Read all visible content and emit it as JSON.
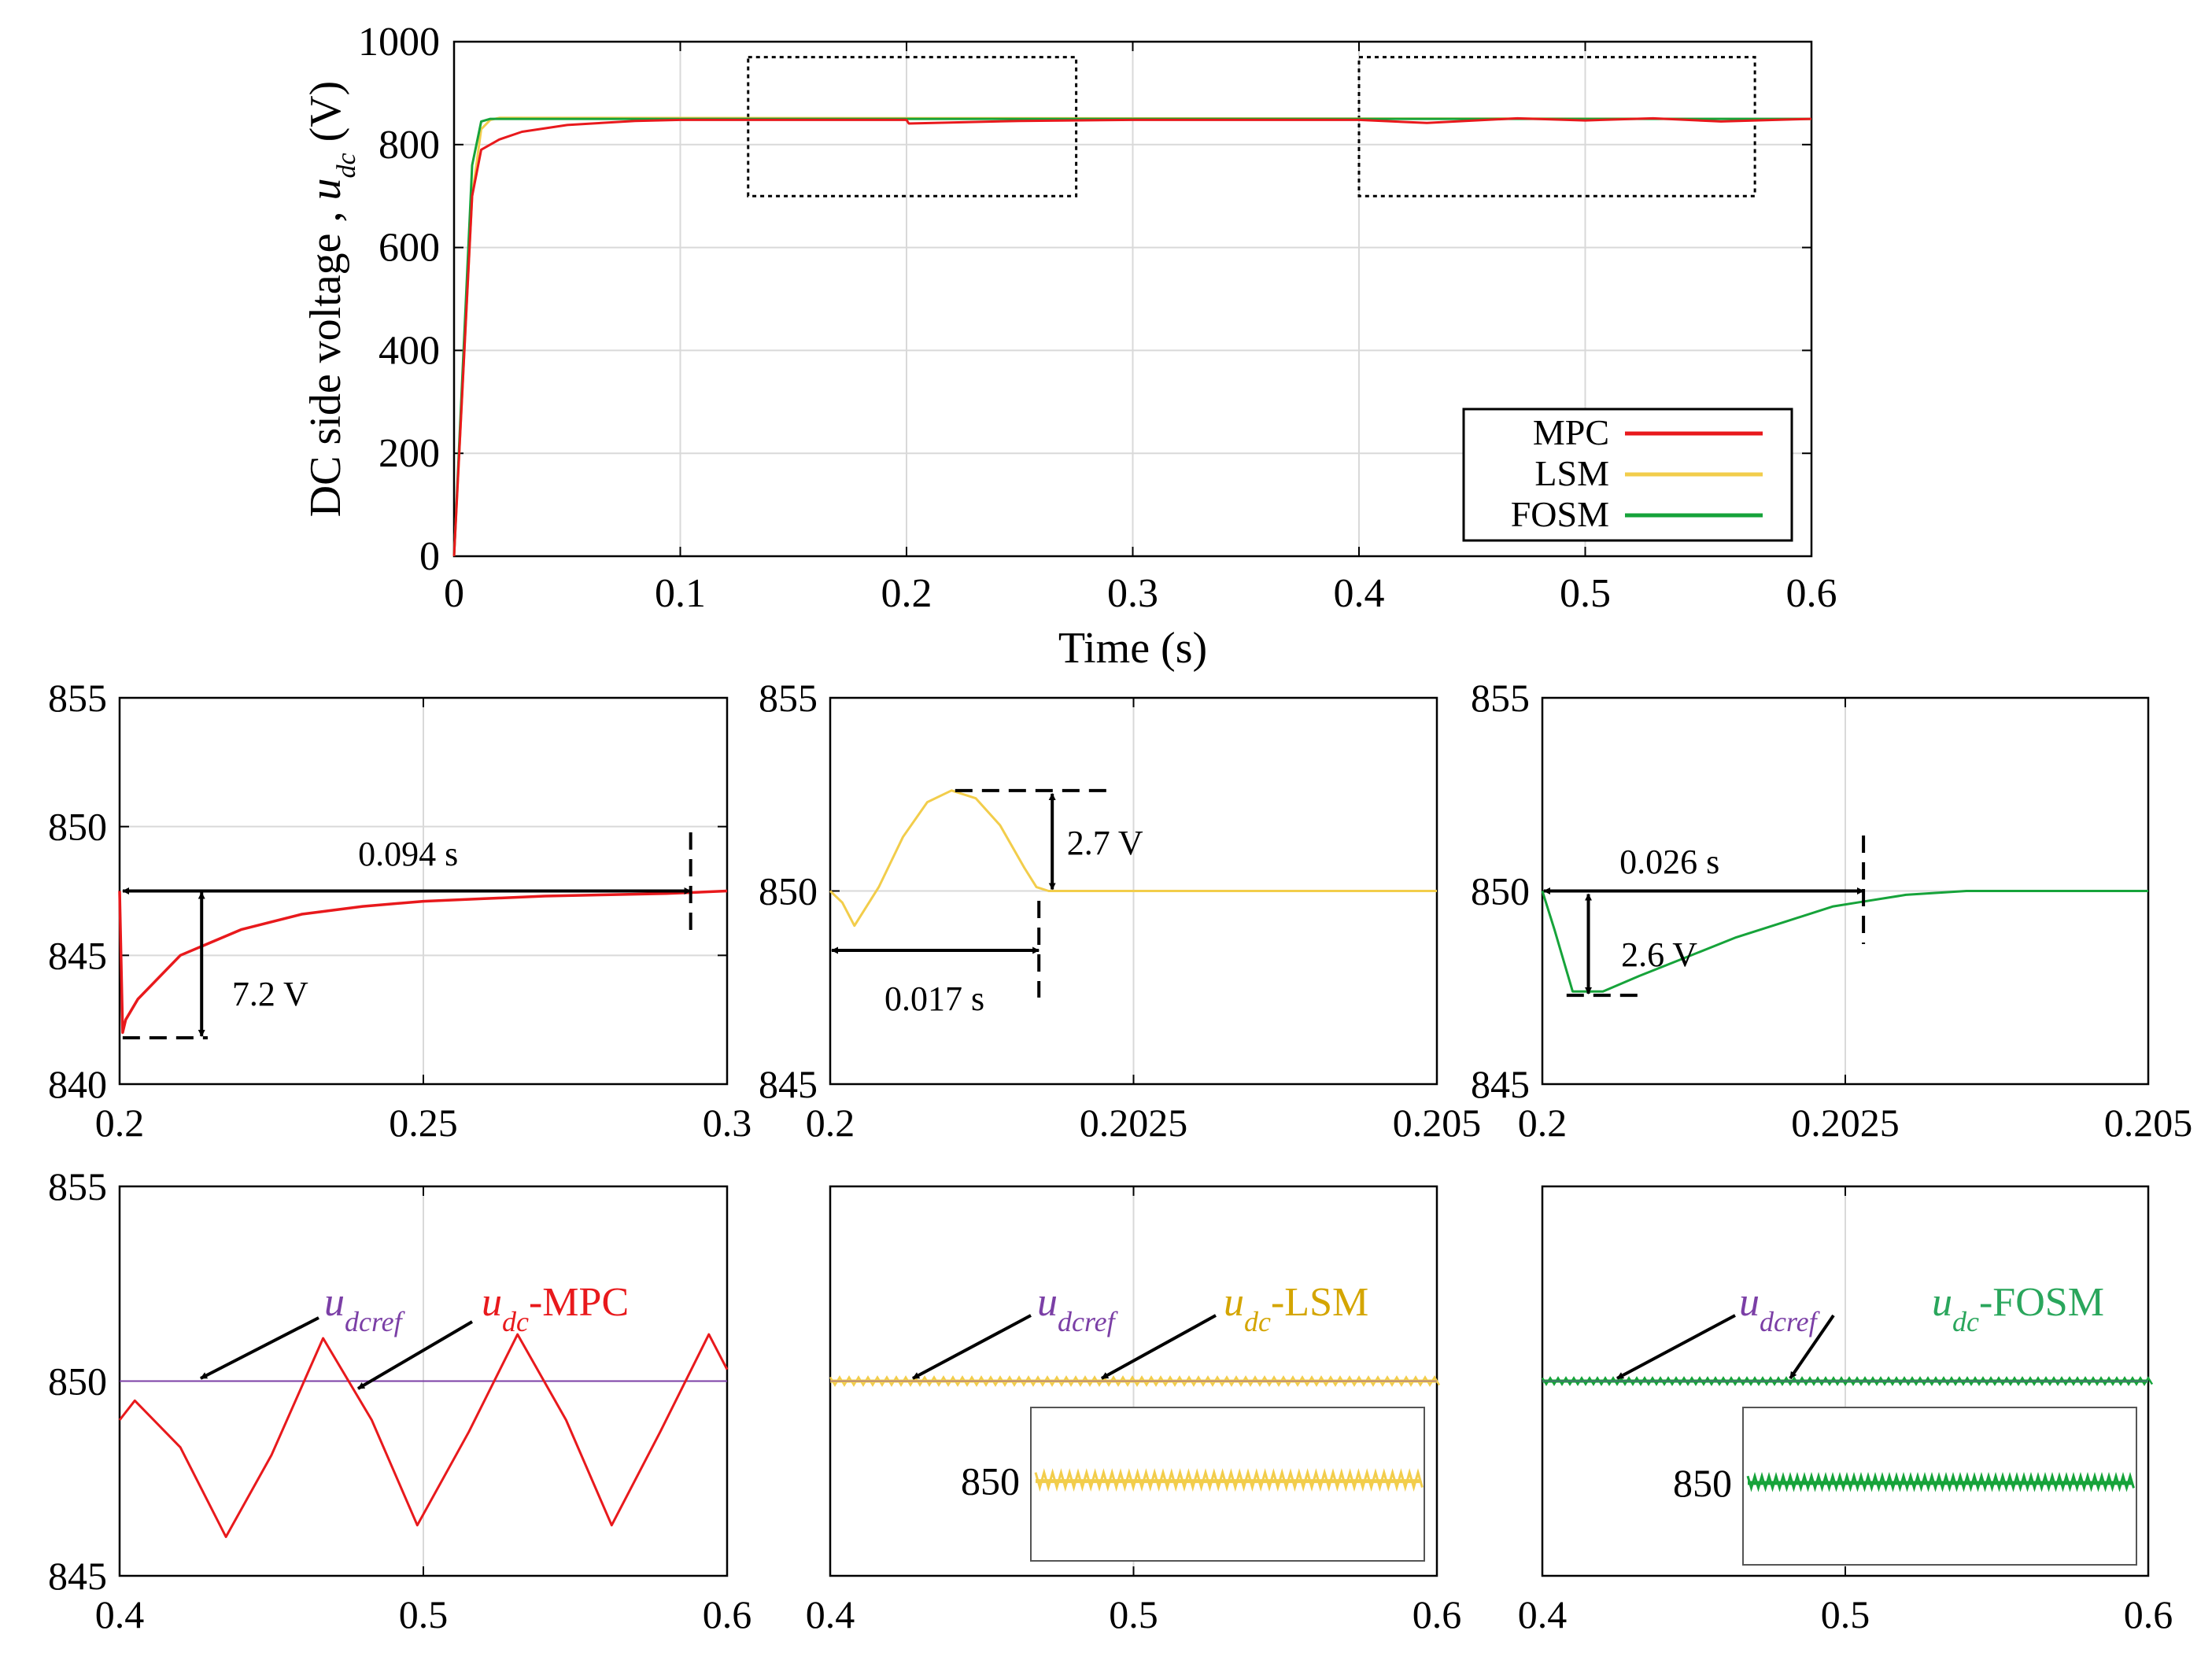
{
  "colors": {
    "mpc": "#e8191c",
    "lsm": "#f2cd4b",
    "fosm": "#16a33a",
    "ref": "#7b3fa6",
    "lsm_label": "#d4a500",
    "fosm_label": "#2aa65c",
    "grid": "#d9d9d9"
  },
  "chart_data": [
    {
      "id": "main",
      "type": "line",
      "ylabel_main": "DC side voltage , ",
      "ylabel_sym": "u",
      "ylabel_sub": "dc",
      "ylabel_unit": " (V)",
      "xlabel": "Time (s)",
      "xlim": [
        0,
        0.6
      ],
      "ylim": [
        0,
        1000
      ],
      "xticks": [
        "0",
        "0.1",
        "0.2",
        "0.3",
        "0.4",
        "0.5",
        "0.6"
      ],
      "yticks": [
        "0",
        "200",
        "400",
        "600",
        "800",
        "1000"
      ],
      "grid": true,
      "legend_position": "bottom-right",
      "legend": [
        "MPC",
        "LSM",
        "FOSM"
      ],
      "zoom_boxes": [
        {
          "x": [
            0.13,
            0.275
          ],
          "y": [
            700,
            970
          ]
        },
        {
          "x": [
            0.4,
            0.575
          ],
          "y": [
            700,
            970
          ]
        }
      ],
      "series": [
        {
          "name": "MPC",
          "x": [
            0,
            0.004,
            0.008,
            0.012,
            0.02,
            0.03,
            0.05,
            0.08,
            0.1,
            0.2,
            0.201,
            0.25,
            0.3,
            0.4,
            0.43,
            0.47,
            0.5,
            0.53,
            0.56,
            0.6
          ],
          "y": [
            0,
            350,
            700,
            790,
            810,
            825,
            838,
            846,
            848,
            848,
            841,
            846,
            848,
            848,
            842,
            851,
            847,
            851,
            845,
            850
          ]
        },
        {
          "name": "LSM",
          "x": [
            0,
            0.004,
            0.008,
            0.012,
            0.016,
            0.02,
            0.6
          ],
          "y": [
            0,
            350,
            700,
            830,
            848,
            852,
            850
          ]
        },
        {
          "name": "FOSM",
          "x": [
            0,
            0.004,
            0.008,
            0.012,
            0.016,
            0.6
          ],
          "y": [
            0,
            380,
            760,
            845,
            850,
            850
          ]
        }
      ]
    },
    {
      "id": "zoom-mpc-step",
      "type": "line",
      "xlim": [
        0.2,
        0.3
      ],
      "ylim": [
        840,
        855
      ],
      "xticks": [
        "0.2",
        "0.25",
        "0.3"
      ],
      "yticks": [
        "840",
        "845",
        "850",
        "855"
      ],
      "series": [
        {
          "name": "MPC",
          "x": [
            0.2,
            0.2005,
            0.201,
            0.203,
            0.21,
            0.22,
            0.23,
            0.24,
            0.25,
            0.26,
            0.27,
            0.28,
            0.29,
            0.3
          ],
          "y": [
            847.5,
            842,
            842.5,
            843.3,
            845,
            846,
            846.6,
            846.9,
            847.1,
            847.2,
            847.3,
            847.35,
            847.4,
            847.5
          ]
        }
      ],
      "annotations": [
        "0.094 s",
        "7.2 V"
      ]
    },
    {
      "id": "zoom-lsm-step",
      "type": "line",
      "xlim": [
        0.2,
        0.205
      ],
      "ylim": [
        845,
        855
      ],
      "xticks": [
        "0.2",
        "0.2025",
        "0.205"
      ],
      "yticks": [
        "845",
        "850",
        "855"
      ],
      "series": [
        {
          "name": "LSM",
          "x": [
            0.2,
            0.2001,
            0.2002,
            0.2004,
            0.2006,
            0.2008,
            0.201,
            0.2012,
            0.2014,
            0.2016,
            0.2017,
            0.2018,
            0.2022,
            0.205
          ],
          "y": [
            850,
            849.7,
            849.1,
            850.1,
            851.4,
            852.3,
            852.6,
            852.4,
            851.7,
            850.6,
            850.1,
            850,
            850,
            850
          ]
        }
      ],
      "annotations": [
        "2.7 V",
        "0.017 s"
      ]
    },
    {
      "id": "zoom-fosm-step",
      "type": "line",
      "xlim": [
        0.2,
        0.205
      ],
      "ylim": [
        845,
        855
      ],
      "xticks": [
        "0.2",
        "0.2025",
        "0.205"
      ],
      "yticks": [
        "845",
        "850",
        "855"
      ],
      "series": [
        {
          "name": "FOSM",
          "x": [
            0.2,
            0.2001,
            0.20025,
            0.2005,
            0.2008,
            0.2012,
            0.2016,
            0.202,
            0.2024,
            0.2026,
            0.203,
            0.2035,
            0.204,
            0.205
          ],
          "y": [
            850,
            849,
            847.4,
            847.4,
            847.8,
            848.3,
            848.8,
            849.2,
            849.6,
            849.7,
            849.9,
            850,
            850,
            850
          ]
        }
      ],
      "annotations": [
        "0.026 s",
        "2.6 V"
      ]
    },
    {
      "id": "ss-mpc",
      "type": "line",
      "xlim": [
        0.4,
        0.6
      ],
      "ylim": [
        845,
        855
      ],
      "xticks": [
        "0.4",
        "0.5",
        "0.6"
      ],
      "yticks": [
        "845",
        "850",
        "855"
      ],
      "series": [
        {
          "name": "udcref",
          "x": [
            0.4,
            0.6
          ],
          "y": [
            850,
            850
          ]
        },
        {
          "name": "MPC",
          "x": [
            0.4,
            0.405,
            0.42,
            0.435,
            0.45,
            0.467,
            0.483,
            0.498,
            0.515,
            0.531,
            0.547,
            0.562,
            0.578,
            0.594,
            0.6
          ],
          "y": [
            849,
            849.5,
            848.3,
            846,
            848.1,
            851.1,
            849,
            846.3,
            848.7,
            851.2,
            849,
            846.3,
            848.7,
            851.2,
            850.3
          ]
        }
      ],
      "labels": {
        "ref_sym": "u",
        "ref_sub": "dcref",
        "sig_sym": "u",
        "sig_sub": "dc",
        "sig_suffix": "-MPC"
      }
    },
    {
      "id": "ss-lsm",
      "type": "line",
      "xlim": [
        0.4,
        0.6
      ],
      "ylim": [
        845,
        855
      ],
      "xticks": [
        "0.4",
        "0.5",
        "0.6"
      ],
      "series": [
        {
          "name": "udcref",
          "x": [
            0.4,
            0.6
          ],
          "y": [
            850,
            850
          ]
        },
        {
          "name": "LSM",
          "x": [
            0.4,
            0.6
          ],
          "y": [
            850,
            850
          ]
        }
      ],
      "labels": {
        "ref_sym": "u",
        "ref_sub": "dcref",
        "sig_sym": "u",
        "sig_sub": "dc",
        "sig_suffix": "-LSM",
        "inset_tick": "850"
      }
    },
    {
      "id": "ss-fosm",
      "type": "line",
      "xlim": [
        0.4,
        0.6
      ],
      "ylim": [
        845,
        855
      ],
      "xticks": [
        "0.4",
        "0.5",
        "0.6"
      ],
      "series": [
        {
          "name": "udcref",
          "x": [
            0.4,
            0.6
          ],
          "y": [
            850,
            850
          ]
        },
        {
          "name": "FOSM",
          "x": [
            0.4,
            0.6
          ],
          "y": [
            850,
            850
          ]
        }
      ],
      "labels": {
        "ref_sym": "u",
        "ref_sub": "dcref",
        "sig_sym": "u",
        "sig_sub": "dc",
        "sig_suffix": "-FOSM",
        "inset_tick": "850"
      }
    }
  ]
}
